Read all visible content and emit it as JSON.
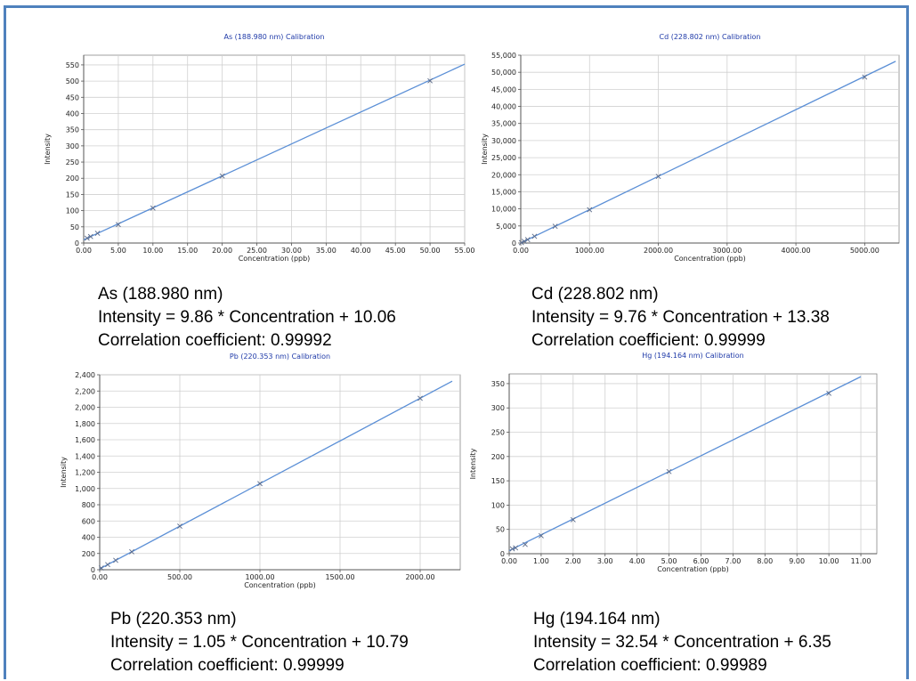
{
  "colors": {
    "frame": "#4f81bd",
    "line": "#5b8fd6",
    "grid": "#d0d0d0",
    "title": "#1f3aa8"
  },
  "chart_data": [
    {
      "type": "scatter",
      "title": "As (188.980 nm) Calibration",
      "xlabel": "Concentration (ppb)",
      "ylabel": "Intensity",
      "xlim": [
        0,
        55
      ],
      "ylim": [
        0,
        580
      ],
      "xticks": [
        0,
        5,
        10,
        15,
        20,
        25,
        30,
        35,
        40,
        45,
        50,
        55
      ],
      "xtick_labels": [
        "0.00",
        "5.00",
        "10.00",
        "15.00",
        "20.00",
        "25.00",
        "30.00",
        "35.00",
        "40.00",
        "45.00",
        "50.00",
        "55.00"
      ],
      "yticks": [
        0,
        50,
        100,
        150,
        200,
        250,
        300,
        350,
        400,
        450,
        500,
        550
      ],
      "ytick_labels": [
        "0",
        "50",
        "100",
        "150",
        "200",
        "250",
        "300",
        "350",
        "400",
        "450",
        "500",
        "550"
      ],
      "points": [
        [
          0.5,
          15
        ],
        [
          1,
          20
        ],
        [
          2,
          30
        ],
        [
          5,
          57
        ],
        [
          10,
          108
        ],
        [
          20,
          207
        ],
        [
          50,
          501
        ]
      ],
      "fit": {
        "slope": 9.86,
        "intercept": 10.06,
        "x_end": 55
      },
      "grid": true,
      "caption": [
        "As (188.980 nm)",
        "Intensity = 9.86 * Concentration + 10.06",
        "Correlation coefficient: 0.99992"
      ]
    },
    {
      "type": "scatter",
      "title": "Cd (228.802 nm) Calibration",
      "xlabel": "Concentration (ppb)",
      "ylabel": "Intensity",
      "xlim": [
        0,
        5500
      ],
      "ylim": [
        0,
        55000
      ],
      "xticks": [
        0,
        1000,
        2000,
        3000,
        4000,
        5000
      ],
      "xtick_labels": [
        "0.00",
        "1000.00",
        "2000.00",
        "3000.00",
        "4000.00",
        "5000.00"
      ],
      "yticks": [
        0,
        5000,
        10000,
        15000,
        20000,
        25000,
        30000,
        35000,
        40000,
        45000,
        50000,
        55000
      ],
      "ytick_labels": [
        "0",
        "5,000",
        "10,000",
        "15,000",
        "20,000",
        "25,000",
        "30,000",
        "35,000",
        "40,000",
        "45,000",
        "50,000",
        "55,000"
      ],
      "points": [
        [
          10,
          110
        ],
        [
          50,
          500
        ],
        [
          100,
          990
        ],
        [
          200,
          1965
        ],
        [
          500,
          4900
        ],
        [
          1000,
          9750
        ],
        [
          2000,
          19500
        ],
        [
          5000,
          48600
        ]
      ],
      "fit": {
        "slope": 9.76,
        "intercept": 13.38,
        "x_end": 5450
      },
      "grid": true,
      "caption": [
        "Cd (228.802 nm)",
        "Intensity = 9.76 * Concentration + 13.38",
        "Correlation coefficient: 0.99999"
      ]
    },
    {
      "type": "scatter",
      "title": "Pb (220.353 nm) Calibration",
      "xlabel": "Concentration (ppb)",
      "ylabel": "Intensity",
      "xlim": [
        0,
        2250
      ],
      "ylim": [
        0,
        2400
      ],
      "xticks": [
        0,
        500,
        1000,
        1500,
        2000
      ],
      "xtick_labels": [
        "0.00",
        "500.00",
        "1000.00",
        "1500.00",
        "2000.00"
      ],
      "yticks": [
        0,
        200,
        400,
        600,
        800,
        1000,
        1200,
        1400,
        1600,
        1800,
        2000,
        2200,
        2400
      ],
      "ytick_labels": [
        "0",
        "200",
        "400",
        "600",
        "800",
        "1,000",
        "1,200",
        "1,400",
        "1,600",
        "1,800",
        "2,000",
        "2,200",
        "2,400"
      ],
      "points": [
        [
          10,
          21
        ],
        [
          50,
          63
        ],
        [
          100,
          116
        ],
        [
          200,
          221
        ],
        [
          500,
          536
        ],
        [
          1000,
          1060
        ],
        [
          2000,
          2110
        ]
      ],
      "fit": {
        "slope": 1.05,
        "intercept": 10.79,
        "x_end": 2200
      },
      "grid": true,
      "caption": [
        "Pb (220.353 nm)",
        "Intensity = 1.05 * Concentration + 10.79",
        "Correlation coefficient: 0.99999"
      ]
    },
    {
      "type": "scatter",
      "title": "Hg (194.164 nm) Calibration",
      "xlabel": "Concentration (ppb)",
      "ylabel": "Intensity",
      "xlim": [
        0,
        11.5
      ],
      "ylim": [
        0,
        370
      ],
      "xticks": [
        0,
        1,
        2,
        3,
        4,
        5,
        6,
        7,
        8,
        9,
        10,
        11
      ],
      "xtick_labels": [
        "0.00",
        "1.00",
        "2.00",
        "3.00",
        "4.00",
        "5.00",
        "6.00",
        "7.00",
        "8.00",
        "9.00",
        "10.00",
        "11.00"
      ],
      "yticks": [
        0,
        50,
        100,
        150,
        200,
        250,
        300,
        350
      ],
      "ytick_labels": [
        "0",
        "50",
        "100",
        "150",
        "200",
        "250",
        "300",
        "350"
      ],
      "points": [
        [
          0.1,
          10
        ],
        [
          0.2,
          12
        ],
        [
          0.5,
          19
        ],
        [
          1,
          37
        ],
        [
          2,
          70
        ],
        [
          5,
          169
        ],
        [
          10,
          330
        ]
      ],
      "fit": {
        "slope": 32.54,
        "intercept": 6.35,
        "x_end": 11
      },
      "grid": true,
      "caption": [
        "Hg (194.164 nm)",
        "Intensity = 32.54 * Concentration + 6.35",
        "Correlation coefficient: 0.99989"
      ]
    }
  ]
}
